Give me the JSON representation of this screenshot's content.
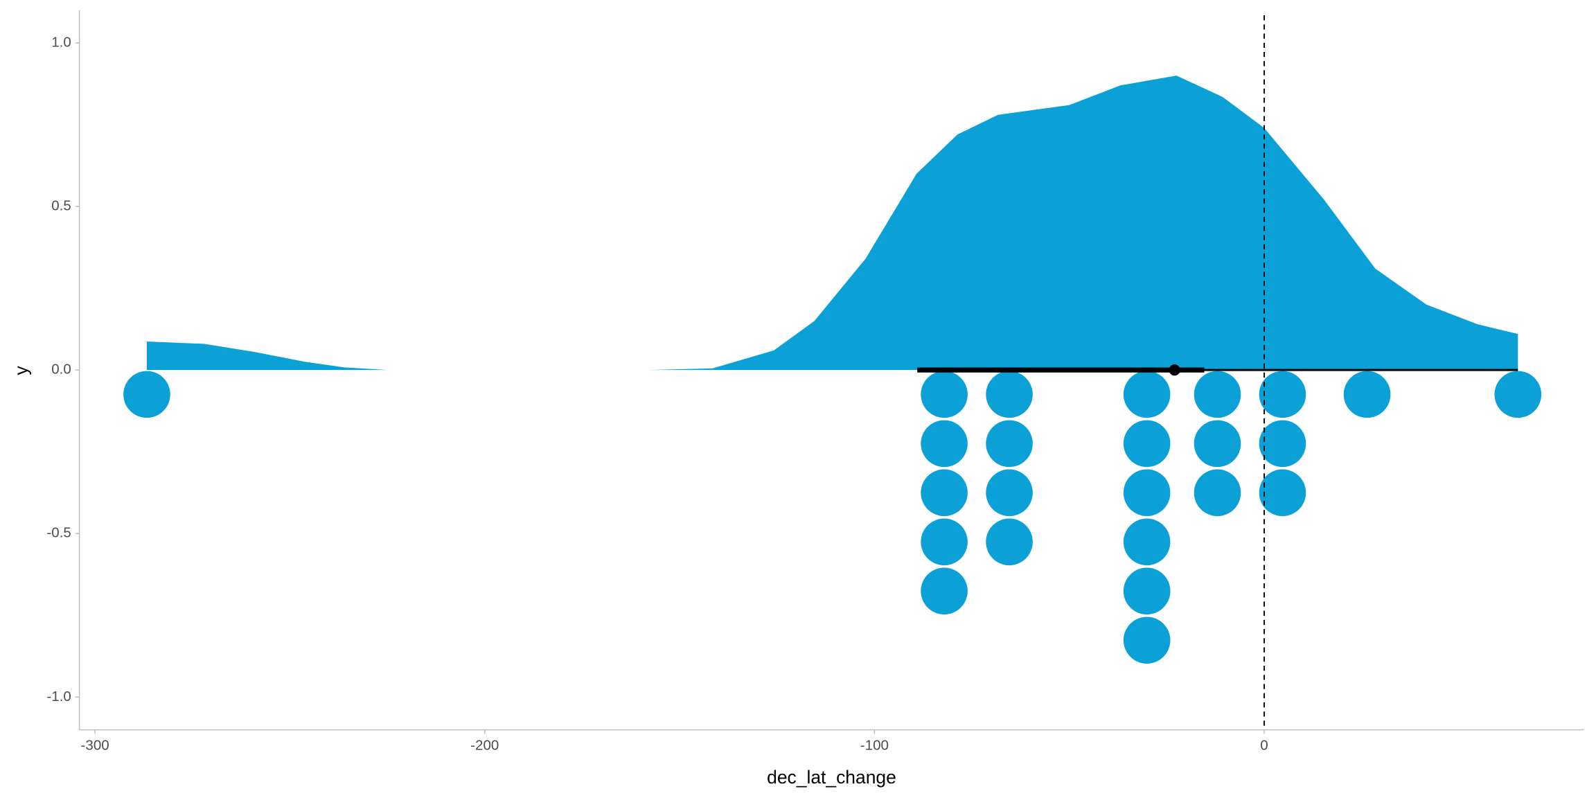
{
  "chart_data": {
    "type": "halfeye",
    "x_label": "dec_lat_change",
    "y_label": "y",
    "xlim": [
      -304,
      82
    ],
    "ylim": [
      -1.1,
      1.1
    ],
    "xticks": [
      -300,
      -200,
      -100,
      0
    ],
    "yticks": [
      {
        "value": -1,
        "label": "-1.0"
      },
      -0.5,
      {
        "value": 0,
        "label": "0.0"
      },
      0.5,
      {
        "value": 1,
        "label": "1.0"
      }
    ],
    "color": "#0ba1d7",
    "grid": false,
    "density": {
      "x": [
        -286.7,
        -272,
        -259,
        -246,
        -236,
        -225,
        null,
        -158,
        -141.5,
        -125.8,
        -115.4,
        -102.3,
        -89.2,
        -78.7,
        -68.3,
        -50,
        -36.9,
        -22.5,
        -10.7,
        0,
        15.4,
        28.5,
        41.6,
        54.7,
        65.1
      ],
      "y": [
        0.087,
        0.08,
        0.055,
        0.025,
        0.008,
        0,
        null,
        0,
        0.005,
        0.06,
        0.15,
        0.34,
        0.6,
        0.72,
        0.78,
        0.81,
        0.87,
        0.9,
        0.835,
        0.74,
        0.52,
        0.31,
        0.2,
        0.14,
        0.11
      ]
    },
    "dots": [
      -286.7,
      -82.1,
      -82.1,
      -82.1,
      -82.1,
      -82.1,
      -65.4,
      -65.4,
      -65.4,
      -65.4,
      -30.1,
      -30.1,
      -30.1,
      -30.1,
      -30.1,
      -30.1,
      -12,
      -12,
      -12,
      4.7,
      4.7,
      4.7,
      26.4,
      65.1
    ],
    "interval": {
      "point": -23,
      "inner": [
        -89,
        -15.4
      ],
      "outer": [
        -89,
        65.1
      ]
    },
    "reference_line": 0
  }
}
